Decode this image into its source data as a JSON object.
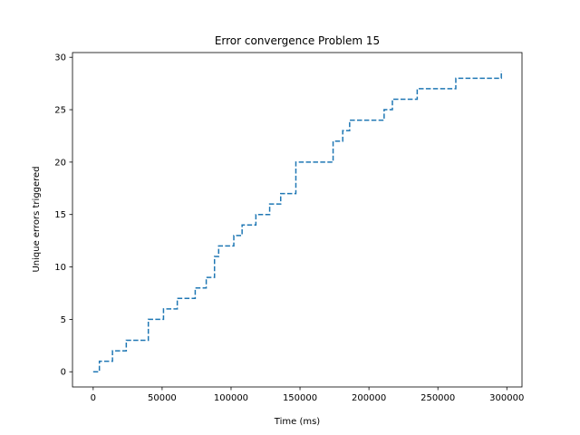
{
  "chart_data": {
    "type": "line",
    "title": "Error convergence Problem 15",
    "xlabel": "Time (ms)",
    "ylabel": "Unique errors triggered",
    "xlim": [
      -15000,
      311000
    ],
    "ylim": [
      -1.45,
      30.45
    ],
    "xticks": [
      0,
      50000,
      100000,
      150000,
      200000,
      250000,
      300000
    ],
    "yticks": [
      0,
      5,
      10,
      15,
      20,
      25,
      30
    ],
    "grid": false,
    "line_style": "dashed",
    "color": "#1f77b4",
    "series": [
      {
        "step": "post",
        "x": [
          0,
          4500,
          14000,
          24000,
          40000,
          51000,
          61000,
          74000,
          82000,
          88000,
          91000,
          102000,
          108000,
          118000,
          128000,
          136000,
          147000,
          174000,
          181000,
          186000,
          211000,
          217000,
          235000,
          263000,
          296000
        ],
        "y": [
          0,
          1,
          2,
          3,
          5,
          6,
          7,
          8,
          9,
          11,
          12,
          13,
          14,
          15,
          16,
          17,
          20,
          22,
          23,
          24,
          25,
          26,
          27,
          28,
          28.7
        ]
      }
    ]
  }
}
